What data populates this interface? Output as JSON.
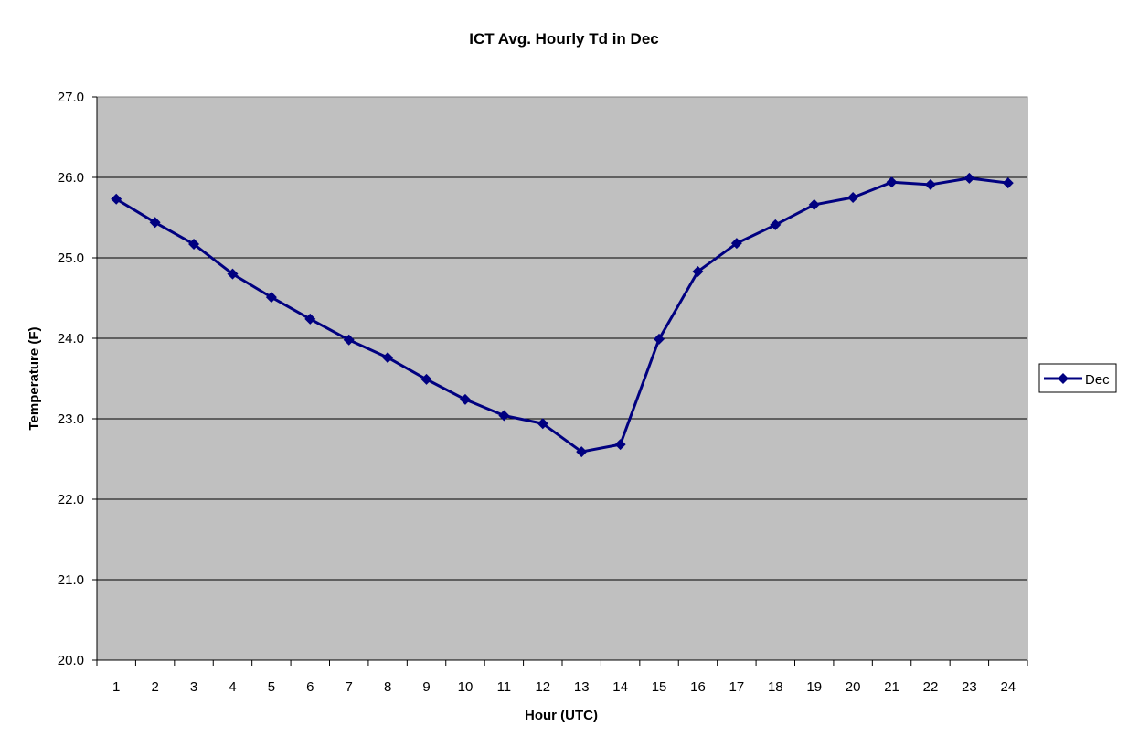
{
  "chart_data": {
    "type": "line",
    "title": "ICT Avg. Hourly Td in Dec",
    "xlabel": "Hour (UTC)",
    "ylabel": "Temperature (F)",
    "categories": [
      "1",
      "2",
      "3",
      "4",
      "5",
      "6",
      "7",
      "8",
      "9",
      "10",
      "11",
      "12",
      "13",
      "14",
      "15",
      "16",
      "17",
      "18",
      "19",
      "20",
      "21",
      "22",
      "23",
      "24"
    ],
    "y_ticks": [
      "20.0",
      "21.0",
      "22.0",
      "23.0",
      "24.0",
      "25.0",
      "26.0",
      "27.0"
    ],
    "ylim": [
      20,
      27
    ],
    "grid": "horizontal",
    "legend_position": "right",
    "plot_background": "#C0C0C0",
    "series": [
      {
        "name": "Dec",
        "color": "#000080",
        "marker": "diamond",
        "values": [
          25.73,
          25.44,
          25.17,
          24.8,
          24.51,
          24.24,
          23.98,
          23.76,
          23.49,
          23.24,
          23.04,
          22.94,
          22.59,
          22.68,
          23.99,
          24.83,
          25.18,
          25.41,
          25.66,
          25.75,
          25.94,
          25.91,
          25.99,
          25.93
        ]
      }
    ]
  }
}
